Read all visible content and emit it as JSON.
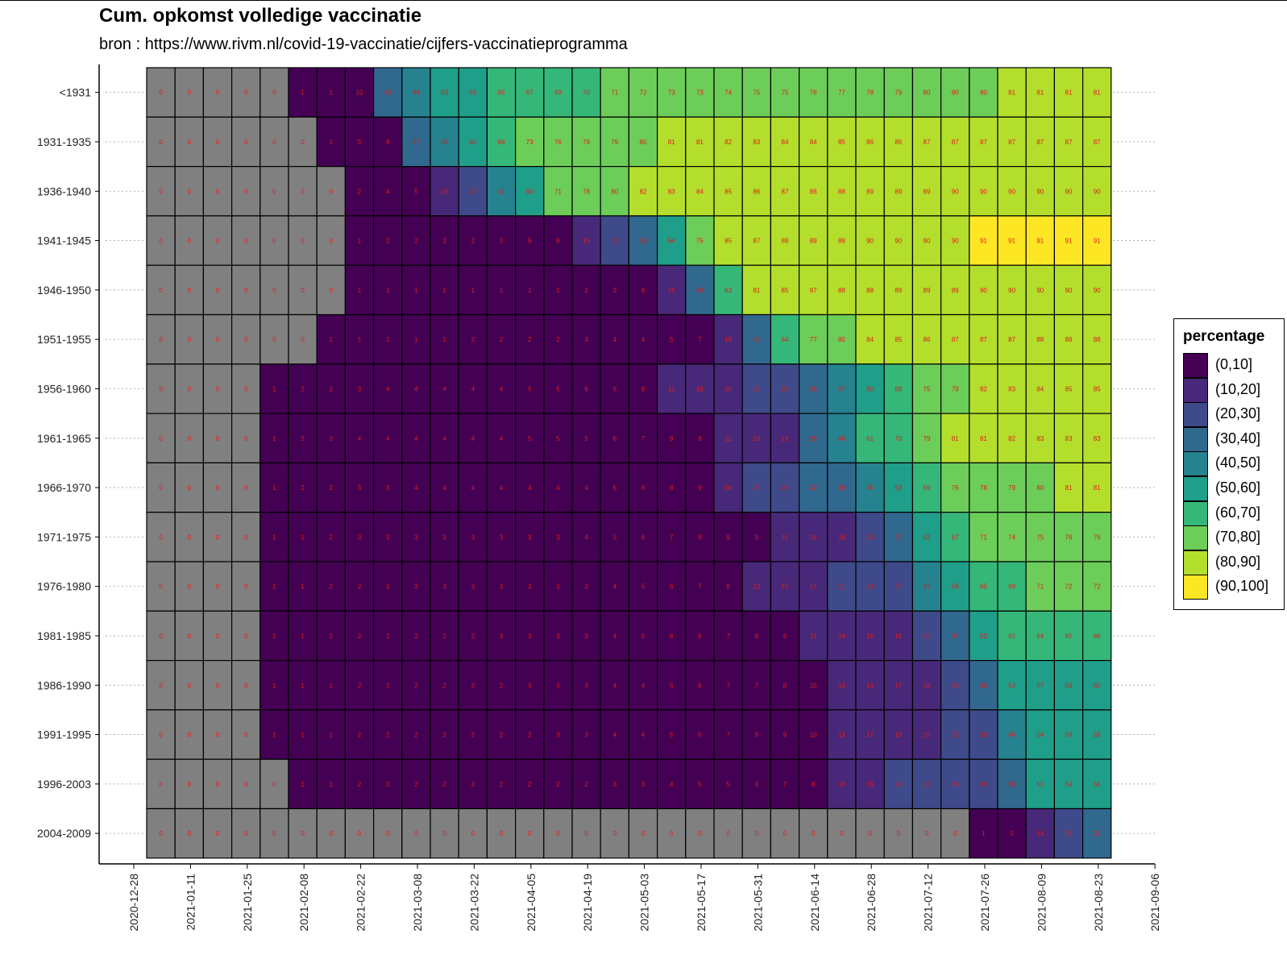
{
  "title": "Cum. opkomst volledige vaccinatie",
  "subtitle": "bron : https://www.rivm.nl/covid-19-vaccinatie/cijfers-vaccinatieprogramma",
  "colors": {
    "zero": "#808080",
    "bins": [
      "#440154",
      "#482878",
      "#3E4A89",
      "#31688E",
      "#26828E",
      "#1F9E89",
      "#35B779",
      "#6DCD59",
      "#B4DE2C",
      "#FDE725"
    ],
    "cell_text": "#E41A1C"
  },
  "legend": {
    "title": "percentage",
    "items": [
      "(0,10]",
      "(10,20]",
      "(20,30]",
      "(30,40]",
      "(40,50]",
      "(50,60]",
      "(60,70]",
      "(70,80]",
      "(80,90]",
      "(90,100]"
    ]
  },
  "chart_data": {
    "type": "heatmap",
    "title": "Cum. opkomst volledige vaccinatie",
    "subtitle": "bron : https://www.rivm.nl/covid-19-vaccinatie/cijfers-vaccinatieprogramma",
    "xlabel": "",
    "ylabel": "",
    "x_ticks": [
      "2020-12-28",
      "2021-01-11",
      "2021-01-25",
      "2021-02-08",
      "2021-02-22",
      "2021-03-08",
      "2021-03-22",
      "2021-04-05",
      "2021-04-19",
      "2021-05-03",
      "2021-05-17",
      "2021-05-31",
      "2021-06-14",
      "2021-06-28",
      "2021-07-12",
      "2021-07-26",
      "2021-08-09",
      "2021-08-23",
      "2021-09-06"
    ],
    "x_range": [
      "2020-12-28",
      "2021-09-06"
    ],
    "columns": [
      "2021-01-04",
      "2021-01-11",
      "2021-01-18",
      "2021-01-25",
      "2021-02-01",
      "2021-02-08",
      "2021-02-15",
      "2021-02-22",
      "2021-03-01",
      "2021-03-08",
      "2021-03-15",
      "2021-03-22",
      "2021-03-29",
      "2021-04-05",
      "2021-04-12",
      "2021-04-19",
      "2021-04-26",
      "2021-05-03",
      "2021-05-10",
      "2021-05-17",
      "2021-05-24",
      "2021-05-31",
      "2021-06-07",
      "2021-06-14",
      "2021-06-21",
      "2021-06-28",
      "2021-07-05",
      "2021-07-12",
      "2021-07-19",
      "2021-07-26",
      "2021-08-02",
      "2021-08-09",
      "2021-08-16",
      "2021-08-23"
    ],
    "rows": [
      "<1931",
      "1931-1935",
      "1936-1940",
      "1941-1945",
      "1946-1950",
      "1951-1955",
      "1956-1960",
      "1961-1965",
      "1966-1970",
      "1971-1975",
      "1976-1980",
      "1981-1985",
      "1986-1990",
      "1991-1995",
      "1996-2003",
      "2004-2009"
    ],
    "fill_legend": "percentage",
    "grid": false,
    "legend_position": "right",
    "values": [
      [
        0,
        0,
        0,
        0,
        0,
        1,
        1,
        10,
        33,
        44,
        53,
        59,
        65,
        67,
        69,
        70,
        71,
        72,
        73,
        73,
        74,
        75,
        75,
        76,
        77,
        78,
        79,
        80,
        80,
        80,
        81,
        81,
        81,
        81
      ],
      [
        0,
        0,
        0,
        0,
        0,
        0,
        1,
        5,
        8,
        37,
        48,
        60,
        69,
        73,
        76,
        78,
        79,
        80,
        81,
        81,
        82,
        83,
        84,
        84,
        85,
        86,
        86,
        87,
        87,
        87,
        87,
        87,
        87,
        87
      ],
      [
        0,
        0,
        0,
        0,
        0,
        0,
        0,
        2,
        4,
        5,
        16,
        26,
        41,
        60,
        71,
        78,
        80,
        82,
        83,
        84,
        85,
        86,
        87,
        88,
        88,
        89,
        89,
        89,
        90,
        90,
        90,
        90,
        90,
        90
      ],
      [
        0,
        0,
        0,
        0,
        0,
        0,
        0,
        1,
        2,
        2,
        2,
        2,
        3,
        5,
        8,
        16,
        23,
        39,
        54,
        75,
        85,
        87,
        88,
        89,
        89,
        90,
        90,
        90,
        90,
        91,
        91,
        91,
        91,
        91
      ],
      [
        0,
        0,
        0,
        0,
        0,
        0,
        0,
        1,
        1,
        1,
        1,
        1,
        1,
        1,
        2,
        2,
        3,
        8,
        16,
        36,
        63,
        81,
        85,
        87,
        88,
        88,
        89,
        89,
        89,
        90,
        90,
        90,
        90,
        90
      ],
      [
        0,
        0,
        0,
        0,
        0,
        0,
        1,
        1,
        1,
        1,
        1,
        2,
        2,
        2,
        2,
        3,
        4,
        4,
        5,
        7,
        18,
        39,
        64,
        77,
        80,
        84,
        85,
        86,
        87,
        87,
        87,
        88,
        88,
        88
      ],
      [
        0,
        0,
        0,
        0,
        1,
        2,
        2,
        3,
        4,
        4,
        4,
        4,
        4,
        5,
        5,
        6,
        6,
        8,
        11,
        16,
        20,
        23,
        28,
        36,
        47,
        60,
        68,
        75,
        79,
        82,
        83,
        84,
        85,
        85
      ],
      [
        0,
        0,
        0,
        0,
        1,
        2,
        3,
        4,
        4,
        4,
        4,
        4,
        4,
        5,
        5,
        5,
        6,
        7,
        9,
        9,
        11,
        12,
        19,
        35,
        48,
        61,
        70,
        79,
        81,
        81,
        82,
        83,
        83,
        83
      ],
      [
        0,
        0,
        0,
        0,
        1,
        2,
        2,
        3,
        3,
        4,
        4,
        4,
        4,
        4,
        4,
        4,
        5,
        6,
        8,
        9,
        16,
        25,
        28,
        32,
        39,
        45,
        53,
        69,
        76,
        78,
        79,
        80,
        81,
        81
      ],
      [
        0,
        0,
        0,
        0,
        1,
        1,
        2,
        3,
        3,
        3,
        3,
        3,
        3,
        3,
        3,
        4,
        5,
        6,
        7,
        8,
        9,
        9,
        11,
        14,
        19,
        23,
        37,
        53,
        67,
        71,
        74,
        75,
        76,
        76
      ],
      [
        0,
        0,
        0,
        0,
        1,
        1,
        2,
        2,
        3,
        3,
        3,
        3,
        3,
        3,
        3,
        3,
        4,
        5,
        6,
        7,
        8,
        12,
        15,
        17,
        21,
        24,
        27,
        42,
        58,
        65,
        69,
        71,
        72,
        72
      ],
      [
        0,
        0,
        0,
        0,
        1,
        1,
        2,
        2,
        2,
        2,
        2,
        2,
        3,
        3,
        3,
        3,
        4,
        5,
        6,
        6,
        7,
        8,
        9,
        11,
        14,
        16,
        16,
        23,
        37,
        53,
        61,
        64,
        65,
        66
      ],
      [
        0,
        0,
        0,
        0,
        1,
        1,
        1,
        2,
        2,
        2,
        2,
        2,
        2,
        3,
        3,
        3,
        4,
        4,
        5,
        6,
        7,
        7,
        8,
        10,
        13,
        13,
        17,
        18,
        23,
        36,
        52,
        57,
        59,
        60
      ],
      [
        0,
        0,
        0,
        0,
        1,
        1,
        1,
        2,
        2,
        2,
        2,
        2,
        2,
        2,
        3,
        3,
        4,
        4,
        5,
        6,
        7,
        8,
        9,
        10,
        13,
        17,
        19,
        20,
        22,
        26,
        46,
        54,
        56,
        58
      ],
      [
        0,
        0,
        0,
        0,
        0,
        1,
        1,
        2,
        2,
        2,
        2,
        2,
        2,
        2,
        2,
        2,
        3,
        3,
        4,
        5,
        5,
        6,
        7,
        8,
        13,
        19,
        21,
        23,
        24,
        26,
        35,
        51,
        54,
        56
      ],
      [
        0,
        0,
        0,
        0,
        0,
        0,
        0,
        0,
        0,
        0,
        0,
        0,
        0,
        0,
        0,
        0,
        0,
        0,
        0,
        0,
        0,
        0,
        0,
        0,
        0,
        0,
        0,
        0,
        0,
        1,
        5,
        14,
        23,
        32
      ]
    ]
  }
}
